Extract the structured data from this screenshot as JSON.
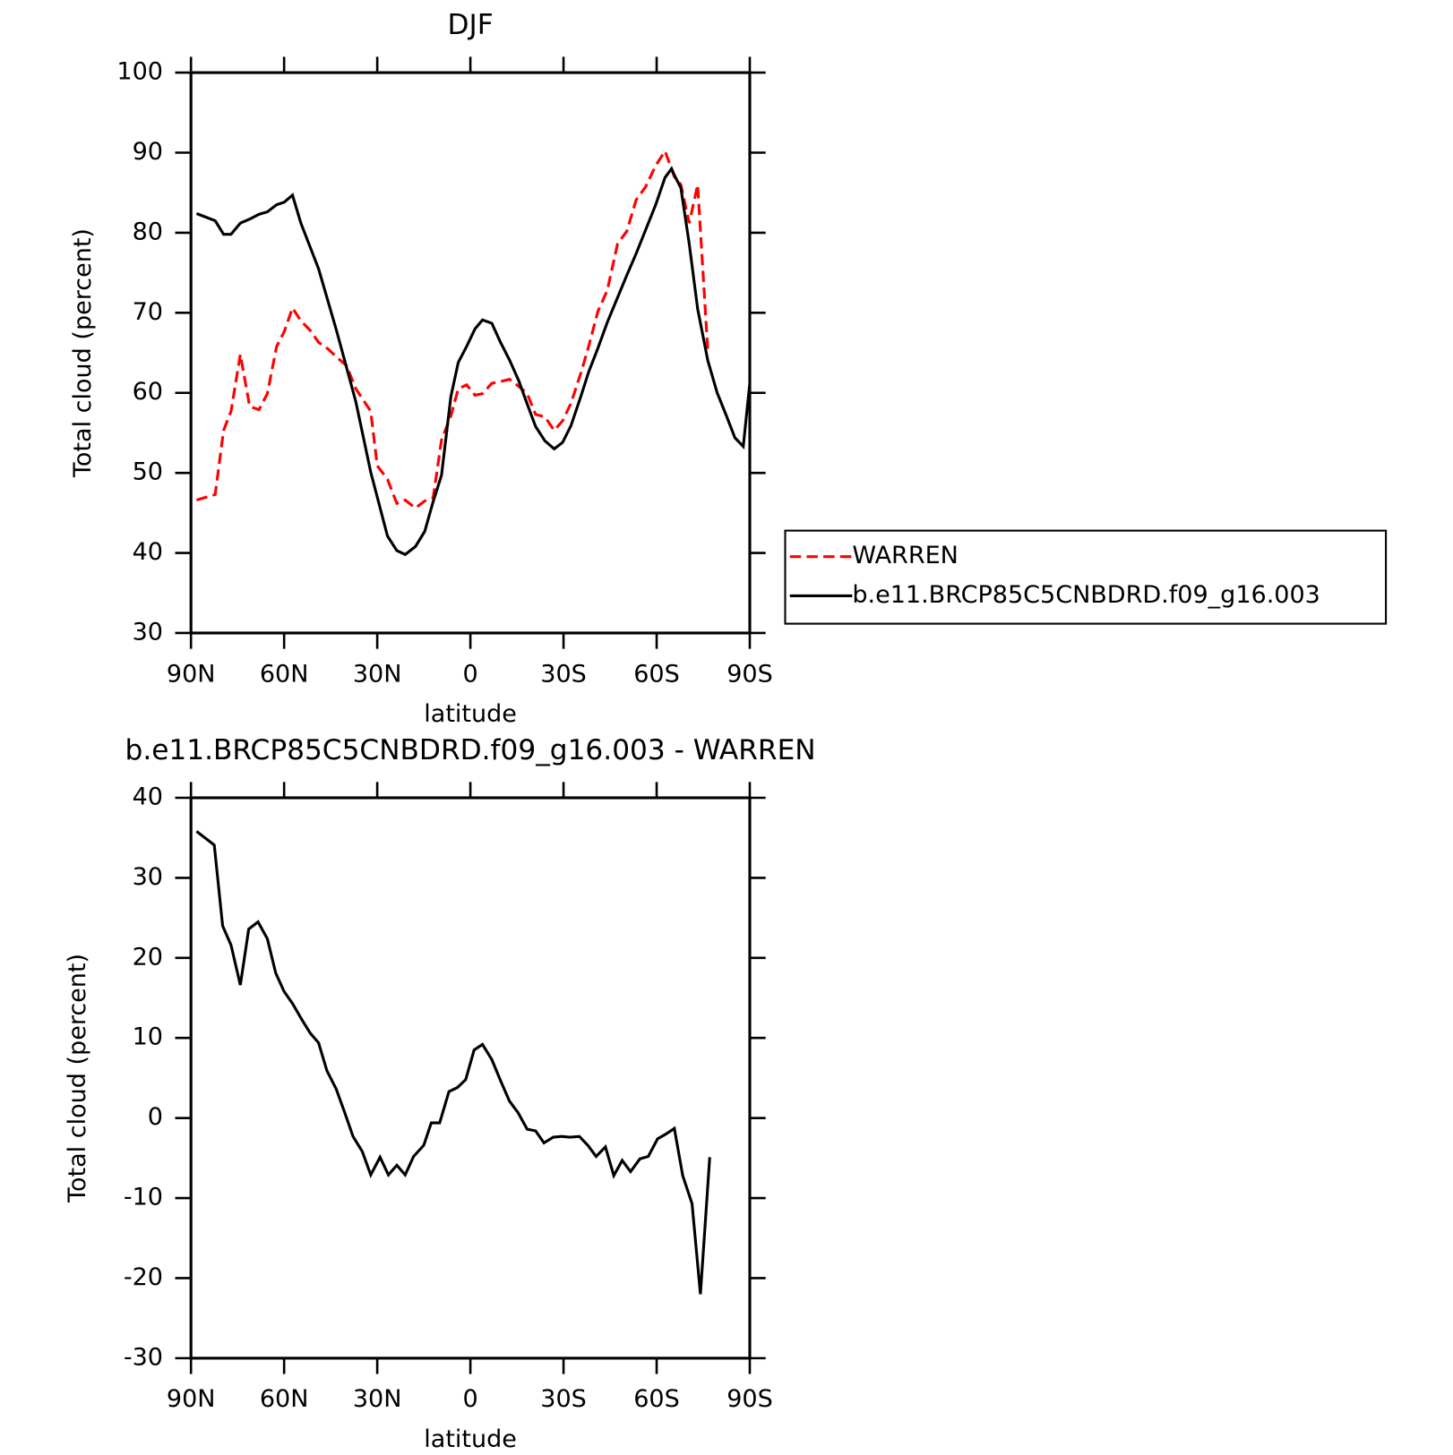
{
  "chart_data": [
    {
      "type": "line",
      "title": "DJF",
      "xlabel": "latitude",
      "ylabel": "Total cloud (percent)",
      "xlim": [
        90,
        -90
      ],
      "xticks": [
        {
          "value": 90,
          "label": "90N"
        },
        {
          "value": 60,
          "label": "60N"
        },
        {
          "value": 30,
          "label": "30N"
        },
        0,
        {
          "value": -30,
          "label": "30S"
        },
        {
          "value": -60,
          "label": "60S"
        },
        {
          "value": -90,
          "label": "90S"
        }
      ],
      "ylim": [
        30,
        100
      ],
      "yticks": [
        30,
        40,
        50,
        60,
        70,
        80,
        90,
        100
      ],
      "legend": "right",
      "series": [
        {
          "name": "WARREN",
          "color": "#ff0000",
          "linestyle": "dashed",
          "x": [
            88.2,
            82.2,
            79.5,
            77.1,
            74.1,
            71.1,
            68.1,
            65.4,
            62.4,
            60,
            57.3,
            54.6,
            51.6,
            48.9,
            45.9,
            43.2,
            39.9,
            36.9,
            32.1,
            30,
            26.7,
            23.7,
            21,
            17.7,
            14.7,
            12,
            9.3,
            6.3,
            3.9,
            1.2,
            -1.5,
            -3.9,
            -6.9,
            -9.6,
            -12.6,
            -15.6,
            -18.3,
            -21,
            -24,
            -27,
            -29.7,
            -32.4,
            -35.7,
            -38.1,
            -41.1,
            -44.1,
            -47.4,
            -50.4,
            -53.4,
            -56.4,
            -59.7,
            -62.7,
            -65.7,
            -67.8,
            -70.5,
            -73.2,
            -76.5
          ],
          "values": [
            46.6,
            47.3,
            55.3,
            57.7,
            64.8,
            58.3,
            57.9,
            59.9,
            65.8,
            67.6,
            70.6,
            69.0,
            67.8,
            66.3,
            65.5,
            64.5,
            63.4,
            60.5,
            57.7,
            50.9,
            49.2,
            46.2,
            46.6,
            45.6,
            46.5,
            46.9,
            54.1,
            57.1,
            60.5,
            61.0,
            59.7,
            59.9,
            61.2,
            61.4,
            61.7,
            60.8,
            59.9,
            57.3,
            57.0,
            55.3,
            56.5,
            58.7,
            62.6,
            65.8,
            70.2,
            72.8,
            78.6,
            80.2,
            84.1,
            85.7,
            88.4,
            90.2,
            87.0,
            86.0,
            81.2,
            86.0,
            65.1
          ]
        },
        {
          "name": "b.e11.BRCP85C5CNBDRD.f09_g16.003",
          "color": "#000000",
          "linestyle": "solid",
          "x": [
            88.2,
            82.2,
            79.5,
            77.1,
            74.1,
            71.1,
            68.1,
            65.4,
            62.4,
            60,
            57.3,
            54.6,
            48.9,
            43.2,
            36.9,
            32.1,
            26.7,
            23.7,
            21,
            17.7,
            14.7,
            12,
            9.3,
            6.3,
            3.9,
            1.2,
            -1.5,
            -3.9,
            -6.9,
            -9.6,
            -12.6,
            -15.6,
            -18.3,
            -21,
            -24,
            -27,
            -29.7,
            -32.4,
            -35.7,
            -38.1,
            -41.1,
            -44.1,
            -47.4,
            -50.4,
            -53.4,
            -56.4,
            -59.7,
            -62.7,
            -64.8,
            -65.7,
            -67.8,
            -70.5,
            -73.2,
            -76.5,
            -79.5,
            -82.5,
            -85.2,
            -87.9,
            -90
          ],
          "values": [
            82.4,
            81.5,
            79.8,
            79.8,
            81.2,
            81.7,
            82.3,
            82.6,
            83.5,
            83.8,
            84.7,
            81.2,
            75.5,
            67.9,
            58.9,
            50.1,
            42.1,
            40.3,
            39.8,
            40.8,
            42.7,
            46.4,
            49.7,
            59.5,
            63.8,
            65.8,
            68.0,
            69.1,
            68.7,
            66.4,
            64.1,
            61.5,
            58.6,
            55.8,
            54.0,
            53.0,
            53.8,
            55.9,
            59.7,
            62.6,
            65.6,
            68.8,
            71.9,
            74.7,
            77.4,
            80.3,
            83.5,
            86.9,
            88.0,
            87.2,
            85.6,
            78.6,
            70.5,
            64.0,
            60.0,
            57.1,
            54.4,
            53.3,
            61.2
          ]
        }
      ]
    },
    {
      "type": "line",
      "title": "b.e11.BRCP85C5CNBDRD.f09_g16.003 - WARREN",
      "xlabel": "latitude",
      "ylabel": "Total cloud (percent)",
      "xlim": [
        90,
        -90
      ],
      "xticks": [
        {
          "value": 90,
          "label": "90N"
        },
        {
          "value": 60,
          "label": "60N"
        },
        {
          "value": 30,
          "label": "30N"
        },
        0,
        {
          "value": -30,
          "label": "30S"
        },
        {
          "value": -60,
          "label": "60S"
        },
        {
          "value": -90,
          "label": "90S"
        }
      ],
      "ylim": [
        -30,
        40
      ],
      "yticks": [
        -30,
        -20,
        -10,
        0,
        10,
        20,
        30,
        40
      ],
      "series": [
        {
          "color": "#000000",
          "linestyle": "solid",
          "x": [
            88.2,
            82.5,
            79.8,
            77.1,
            74.1,
            71.4,
            68.4,
            65.4,
            62.7,
            60,
            57.3,
            54.3,
            51.6,
            48.9,
            46.2,
            43.2,
            40.5,
            37.8,
            34.8,
            32.1,
            29.1,
            26.4,
            23.7,
            21,
            18.3,
            15,
            12.6,
            9.9,
            6.9,
            4.2,
            1.5,
            -1.2,
            -3.9,
            -6.9,
            -9.9,
            -12.6,
            -15.3,
            -18.3,
            -21,
            -23.7,
            -26.7,
            -29.4,
            -32.1,
            -35.1,
            -37.8,
            -40.5,
            -43.5,
            -46.2,
            -48.9,
            -51.6,
            -54.6,
            -57.3,
            -60.3,
            -63,
            -65.7,
            -68.4,
            -71.4,
            -74.1,
            -77.1
          ],
          "values": [
            35.8,
            34.1,
            24.0,
            21.6,
            16.6,
            23.6,
            24.5,
            22.4,
            18.1,
            15.8,
            14.3,
            12.3,
            10.6,
            9.4,
            5.9,
            3.6,
            0.7,
            -2.3,
            -4.2,
            -7.1,
            -4.9,
            -7.1,
            -5.9,
            -7.1,
            -4.8,
            -3.4,
            -0.6,
            -0.6,
            3.3,
            3.8,
            4.8,
            8.5,
            9.2,
            7.3,
            4.5,
            2.1,
            0.7,
            -1.4,
            -1.6,
            -3.1,
            -2.4,
            -2.3,
            -2.4,
            -2.3,
            -3.4,
            -4.8,
            -3.6,
            -7.2,
            -5.3,
            -6.7,
            -5.1,
            -4.8,
            -2.6,
            -2.0,
            -1.3,
            -7.2,
            -10.7,
            -22.0,
            -4.9
          ]
        }
      ]
    }
  ]
}
